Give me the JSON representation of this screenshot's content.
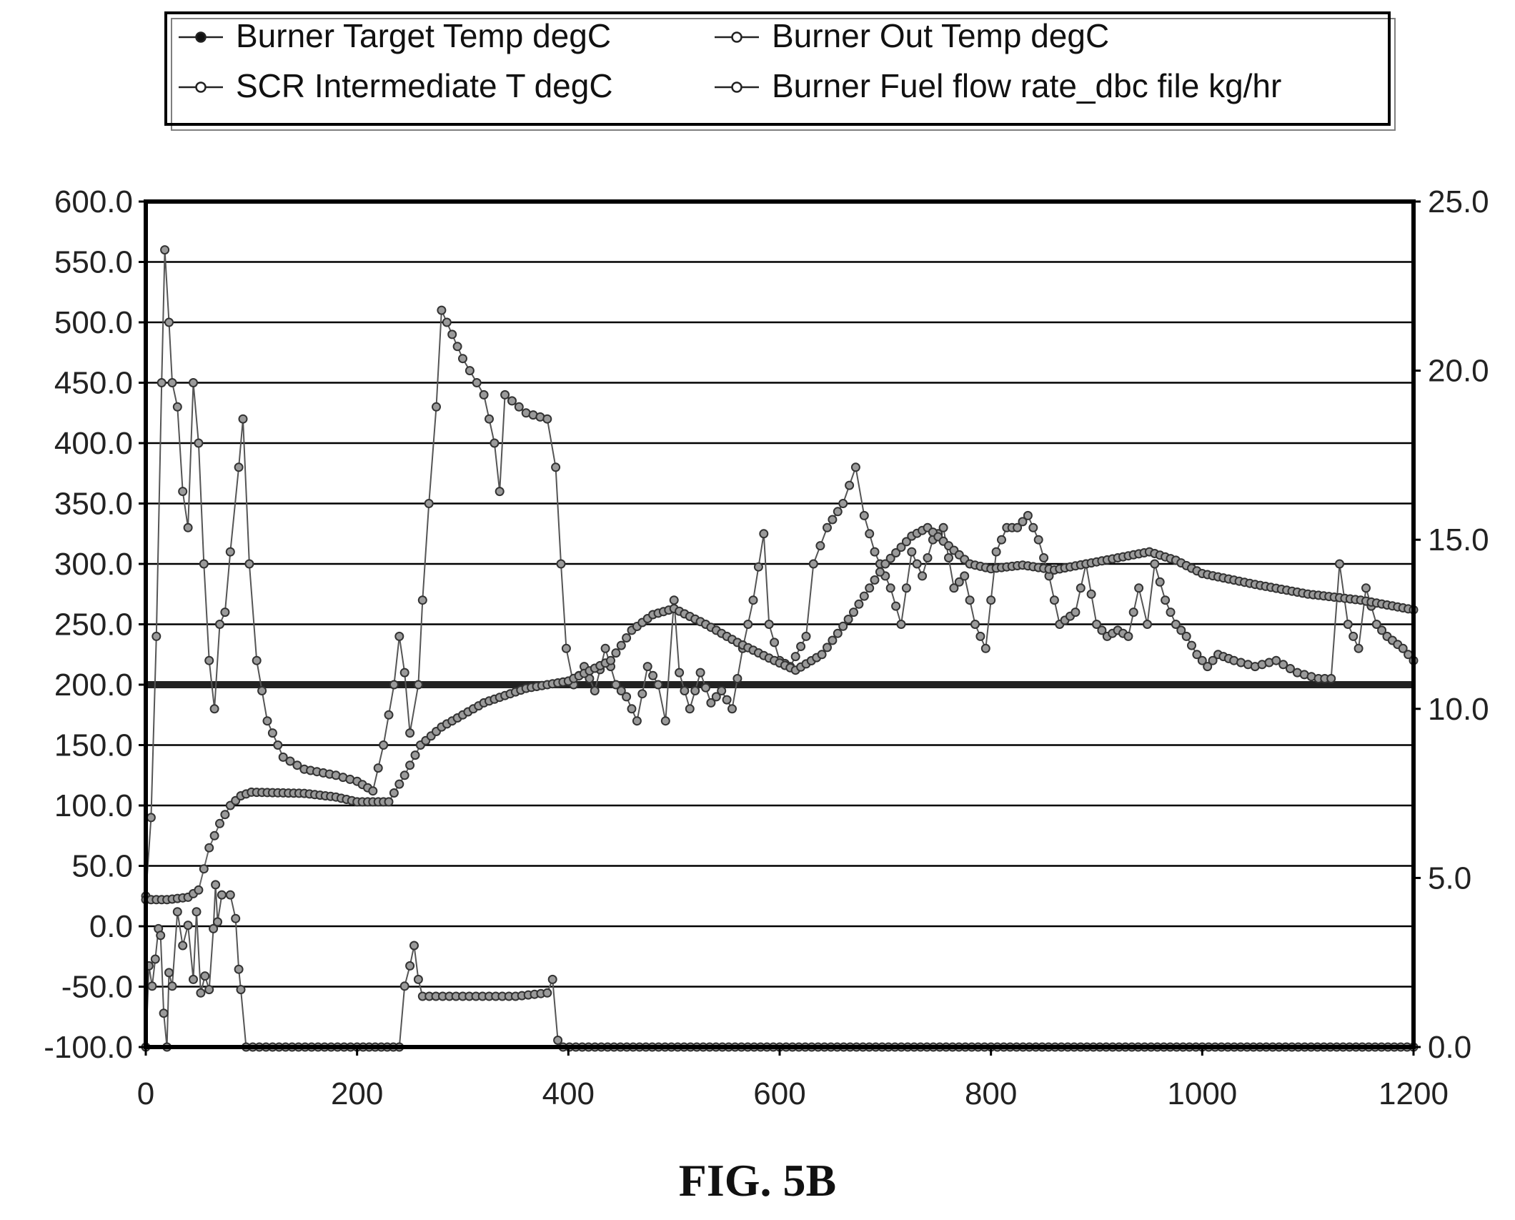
{
  "figure_caption": "FIG. 5B",
  "chart_data": {
    "type": "line",
    "title": "",
    "xlabel": "",
    "ylabel": "",
    "y2label": "",
    "xlim": [
      0,
      1200
    ],
    "ylim": [
      -100,
      600
    ],
    "y2lim": [
      0,
      25
    ],
    "x_ticks": [
      "0",
      "200",
      "400",
      "600",
      "800",
      "1000",
      "1200"
    ],
    "y_ticks": [
      "600.0",
      "550.0",
      "500.0",
      "450.0",
      "400.0",
      "350.0",
      "300.0",
      "250.0",
      "200.0",
      "150.0",
      "100.0",
      "50.0",
      "0.0",
      "-50.0",
      "-100.0"
    ],
    "y2_ticks": [
      "25.0",
      "20.0",
      "15.0",
      "10.0",
      "5.0",
      "0.0"
    ],
    "grid": true,
    "legend_position": "top",
    "series": [
      {
        "name": "Burner Target Temp degC",
        "axis": "left",
        "points": [
          [
            0,
            200
          ],
          [
            1200,
            200
          ]
        ]
      },
      {
        "name": "Burner Out Temp degC",
        "axis": "left",
        "points": [
          [
            0,
            25
          ],
          [
            5,
            90
          ],
          [
            10,
            240
          ],
          [
            15,
            450
          ],
          [
            18,
            560
          ],
          [
            22,
            500
          ],
          [
            25,
            450
          ],
          [
            30,
            430
          ],
          [
            35,
            360
          ],
          [
            40,
            330
          ],
          [
            45,
            450
          ],
          [
            50,
            400
          ],
          [
            55,
            300
          ],
          [
            60,
            220
          ],
          [
            65,
            180
          ],
          [
            70,
            250
          ],
          [
            75,
            260
          ],
          [
            80,
            310
          ],
          [
            88,
            380
          ],
          [
            92,
            420
          ],
          [
            98,
            300
          ],
          [
            105,
            220
          ],
          [
            115,
            170
          ],
          [
            130,
            140
          ],
          [
            150,
            130
          ],
          [
            180,
            125
          ],
          [
            200,
            120
          ],
          [
            215,
            112
          ],
          [
            225,
            150
          ],
          [
            235,
            200
          ],
          [
            240,
            240
          ],
          [
            245,
            210
          ],
          [
            250,
            160
          ],
          [
            258,
            200
          ],
          [
            262,
            270
          ],
          [
            268,
            350
          ],
          [
            275,
            430
          ],
          [
            280,
            510
          ],
          [
            285,
            500
          ],
          [
            300,
            470
          ],
          [
            320,
            440
          ],
          [
            330,
            400
          ],
          [
            335,
            360
          ],
          [
            340,
            440
          ],
          [
            360,
            425
          ],
          [
            380,
            420
          ],
          [
            388,
            380
          ],
          [
            393,
            300
          ],
          [
            398,
            230
          ],
          [
            405,
            200
          ],
          [
            415,
            215
          ],
          [
            425,
            195
          ],
          [
            435,
            230
          ],
          [
            445,
            200
          ],
          [
            455,
            190
          ],
          [
            465,
            170
          ],
          [
            475,
            215
          ],
          [
            485,
            200
          ],
          [
            492,
            170
          ],
          [
            500,
            270
          ],
          [
            505,
            210
          ],
          [
            515,
            180
          ],
          [
            525,
            210
          ],
          [
            535,
            185
          ],
          [
            545,
            195
          ],
          [
            555,
            180
          ],
          [
            565,
            230
          ],
          [
            575,
            270
          ],
          [
            585,
            325
          ],
          [
            590,
            250
          ],
          [
            600,
            220
          ],
          [
            610,
            215
          ],
          [
            625,
            240
          ],
          [
            632,
            300
          ],
          [
            645,
            330
          ],
          [
            660,
            350
          ],
          [
            672,
            380
          ],
          [
            680,
            340
          ],
          [
            690,
            310
          ],
          [
            705,
            280
          ],
          [
            715,
            250
          ],
          [
            725,
            310
          ],
          [
            735,
            290
          ],
          [
            745,
            320
          ],
          [
            755,
            330
          ],
          [
            765,
            280
          ],
          [
            775,
            290
          ],
          [
            785,
            250
          ],
          [
            795,
            230
          ],
          [
            805,
            310
          ],
          [
            815,
            330
          ],
          [
            825,
            330
          ],
          [
            835,
            340
          ],
          [
            845,
            320
          ],
          [
            855,
            290
          ],
          [
            865,
            250
          ],
          [
            880,
            260
          ],
          [
            890,
            300
          ],
          [
            900,
            250
          ],
          [
            910,
            240
          ],
          [
            920,
            245
          ],
          [
            930,
            240
          ],
          [
            940,
            280
          ],
          [
            948,
            250
          ],
          [
            955,
            300
          ],
          [
            965,
            270
          ],
          [
            975,
            250
          ],
          [
            985,
            240
          ],
          [
            995,
            225
          ],
          [
            1005,
            215
          ],
          [
            1015,
            225
          ],
          [
            1030,
            220
          ],
          [
            1050,
            215
          ],
          [
            1070,
            220
          ],
          [
            1090,
            210
          ],
          [
            1110,
            205
          ],
          [
            1122,
            205
          ],
          [
            1130,
            300
          ],
          [
            1138,
            250
          ],
          [
            1148,
            230
          ],
          [
            1155,
            280
          ],
          [
            1165,
            250
          ],
          [
            1175,
            240
          ],
          [
            1190,
            230
          ],
          [
            1200,
            220
          ]
        ]
      },
      {
        "name": "SCR Intermediate T degC",
        "axis": "left",
        "points": [
          [
            0,
            22
          ],
          [
            20,
            22
          ],
          [
            40,
            24
          ],
          [
            50,
            30
          ],
          [
            60,
            65
          ],
          [
            70,
            85
          ],
          [
            80,
            100
          ],
          [
            90,
            108
          ],
          [
            100,
            111
          ],
          [
            150,
            110
          ],
          [
            180,
            107
          ],
          [
            200,
            103
          ],
          [
            230,
            103
          ],
          [
            245,
            125
          ],
          [
            260,
            150
          ],
          [
            280,
            165
          ],
          [
            320,
            185
          ],
          [
            360,
            197
          ],
          [
            400,
            203
          ],
          [
            440,
            220
          ],
          [
            460,
            245
          ],
          [
            480,
            258
          ],
          [
            500,
            263
          ],
          [
            530,
            250
          ],
          [
            560,
            235
          ],
          [
            590,
            222
          ],
          [
            615,
            212
          ],
          [
            640,
            225
          ],
          [
            670,
            260
          ],
          [
            700,
            300
          ],
          [
            725,
            323
          ],
          [
            740,
            330
          ],
          [
            760,
            315
          ],
          [
            780,
            300
          ],
          [
            800,
            296
          ],
          [
            830,
            299
          ],
          [
            860,
            295
          ],
          [
            890,
            300
          ],
          [
            920,
            305
          ],
          [
            950,
            310
          ],
          [
            975,
            303
          ],
          [
            1000,
            292
          ],
          [
            1050,
            283
          ],
          [
            1100,
            275
          ],
          [
            1150,
            270
          ],
          [
            1200,
            262
          ]
        ]
      },
      {
        "name": "Burner Fuel flow rate_dbc file kg/hr",
        "axis": "right",
        "points": [
          [
            0,
            0.0
          ],
          [
            3,
            2.4
          ],
          [
            6,
            1.8
          ],
          [
            9,
            2.6
          ],
          [
            12,
            3.5
          ],
          [
            14,
            3.3
          ],
          [
            17,
            1.0
          ],
          [
            20,
            0.0
          ],
          [
            22,
            2.2
          ],
          [
            25,
            1.8
          ],
          [
            30,
            4.0
          ],
          [
            35,
            3.0
          ],
          [
            40,
            3.6
          ],
          [
            45,
            2.0
          ],
          [
            48,
            4.0
          ],
          [
            52,
            1.6
          ],
          [
            56,
            2.1
          ],
          [
            60,
            1.7
          ],
          [
            64,
            3.5
          ],
          [
            66,
            4.8
          ],
          [
            68,
            3.7
          ],
          [
            72,
            4.5
          ],
          [
            80,
            4.5
          ],
          [
            85,
            3.8
          ],
          [
            88,
            2.3
          ],
          [
            90,
            1.7
          ],
          [
            95,
            0.0
          ],
          [
            120,
            0.0
          ],
          [
            200,
            0.0
          ],
          [
            240,
            0.0
          ],
          [
            245,
            1.8
          ],
          [
            250,
            2.4
          ],
          [
            254,
            3.0
          ],
          [
            258,
            2.0
          ],
          [
            262,
            1.5
          ],
          [
            300,
            1.5
          ],
          [
            350,
            1.5
          ],
          [
            380,
            1.6
          ],
          [
            385,
            2.0
          ],
          [
            390,
            0.2
          ],
          [
            395,
            0.0
          ],
          [
            600,
            0.0
          ],
          [
            800,
            0.0
          ],
          [
            1000,
            0.0
          ],
          [
            1200,
            0.0
          ]
        ]
      }
    ],
    "colors": {
      "grid": "#000000",
      "axes": "#000000",
      "burner_target": "#222222",
      "burner_out": "#555555",
      "scr_intermediate": "#666666",
      "fuel_flow": "#555555",
      "marker_fill": "#9a9a9a"
    }
  }
}
